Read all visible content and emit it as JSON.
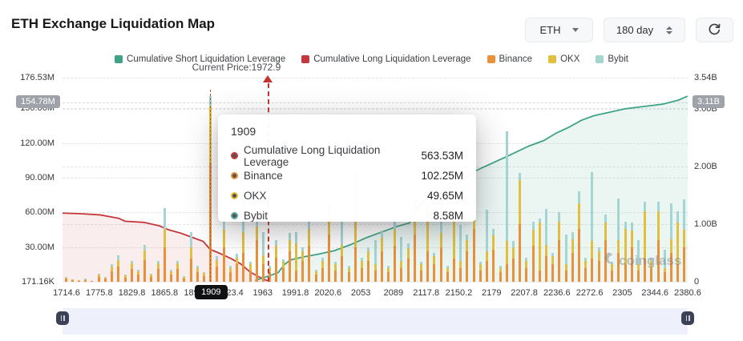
{
  "header": {
    "title": "ETH Exchange Liquidation Map",
    "coin_select": "ETH",
    "period_select": "180 day"
  },
  "legend": {
    "items": [
      {
        "label": "Cumulative Short Liquidation Leverage",
        "color": "#3fa287"
      },
      {
        "label": "Cumulative Long Liquidation Leverage",
        "color": "#c5383d"
      },
      {
        "label": "Binance",
        "color": "#e8913a"
      },
      {
        "label": "OKX",
        "color": "#e2bf3f"
      },
      {
        "label": "Bybit",
        "color": "#a5d5d3"
      }
    ]
  },
  "current_price": {
    "label": "Current Price:1972.9",
    "value": 1972.9,
    "fraction": 0.329
  },
  "tooltip": {
    "title": "1909",
    "rows": [
      {
        "name": "Cumulative Long Liquidation Leverage",
        "value": "563.53M",
        "color": "#c5383d"
      },
      {
        "name": "Binance",
        "value": "102.25M",
        "color": "#e8913a"
      },
      {
        "name": "OKX",
        "value": "49.65M",
        "color": "#e2bf3f"
      },
      {
        "name": "Bybit",
        "value": "8.58M",
        "color": "#58a9a4"
      }
    ]
  },
  "watermark": "coinglass",
  "chart_data": {
    "type": "bar",
    "subtype": "stacked bars with two cumulative area lines",
    "x_axis": {
      "type": "category",
      "tick_labels": [
        "1714.6",
        "1775.8",
        "1829.8",
        "1865.8",
        "1894.6",
        "1923.4",
        "1963",
        "1991.8",
        "2020.6",
        "2053",
        "2089",
        "2117.8",
        "2150.2",
        "2179",
        "2207.8",
        "2236.6",
        "2272.6",
        "2305",
        "2344.6",
        "2380.6"
      ],
      "highlight": {
        "label": "1909",
        "fraction": 0.236
      }
    },
    "y_left": {
      "unit": "M",
      "max_M": 176.53,
      "ticks": [
        {
          "label": "171.16K",
          "value_M": 0
        },
        {
          "label": "30.00M",
          "value_M": 30
        },
        {
          "label": "60.00M",
          "value_M": 60
        },
        {
          "label": "90.00M",
          "value_M": 90
        },
        {
          "label": "120.00M",
          "value_M": 120
        },
        {
          "label": "150.00M",
          "value_M": 150
        },
        {
          "label": "176.53M",
          "value_M": 176.53
        }
      ],
      "badge": {
        "label": "154.78M",
        "value_M": 154.78
      }
    },
    "y_right": {
      "unit": "B",
      "max_B": 3.54,
      "ticks": [
        {
          "label": "0",
          "value_B": 0
        },
        {
          "label": "1.00B",
          "value_B": 1
        },
        {
          "label": "2.00B",
          "value_B": 2
        },
        {
          "label": "3.00B",
          "value_B": 3
        },
        {
          "label": "3.54B",
          "value_B": 3.54
        }
      ],
      "badge": {
        "label": "3.11B",
        "value_B": 3.11
      }
    },
    "bars": {
      "series_order": [
        "Binance",
        "OKX",
        "Bybit"
      ],
      "colors": {
        "binance": "#e8913a",
        "okx": "#e2bf3f",
        "bybit": "#a5d5d3"
      },
      "unit": "M",
      "values": [
        [
          2.5,
          1.2,
          0.3
        ],
        [
          1.2,
          0.6,
          0.2
        ],
        [
          0.8,
          0.4,
          0.1
        ],
        [
          1.5,
          0.8,
          0.2
        ],
        [
          0.6,
          0.3,
          0.1
        ],
        [
          4,
          2,
          0.6
        ],
        [
          2.5,
          1.2,
          0.4
        ],
        [
          9,
          4,
          2
        ],
        [
          13,
          6,
          4
        ],
        [
          3.5,
          2,
          1
        ],
        [
          11,
          5,
          2
        ],
        [
          6,
          3,
          1.5
        ],
        [
          19,
          8,
          5
        ],
        [
          4,
          2,
          1
        ],
        [
          11,
          5,
          2
        ],
        [
          30,
          16,
          18
        ],
        [
          6,
          3,
          1.5
        ],
        [
          11,
          5,
          2
        ],
        [
          3,
          1.5,
          0.5
        ],
        [
          20,
          10,
          13
        ],
        [
          8,
          4,
          2
        ],
        [
          5,
          2.5,
          1
        ],
        [
          102.25,
          49.65,
          8.58
        ],
        [
          13,
          6,
          3
        ],
        [
          30,
          15,
          12
        ],
        [
          8,
          4,
          2
        ],
        [
          15,
          6,
          3
        ],
        [
          25,
          18,
          40
        ],
        [
          10,
          5,
          2
        ],
        [
          36,
          12,
          8
        ],
        [
          15,
          8,
          20
        ],
        [
          8,
          4,
          2
        ],
        [
          21,
          10,
          5
        ],
        [
          12,
          5,
          2.5
        ],
        [
          26,
          10,
          6
        ],
        [
          10,
          23,
          10
        ],
        [
          18,
          8,
          4
        ],
        [
          31,
          15,
          8
        ],
        [
          6,
          3,
          1.5
        ],
        [
          12,
          6,
          3
        ],
        [
          41,
          18,
          10
        ],
        [
          10,
          5,
          2
        ],
        [
          22,
          10,
          26
        ],
        [
          8,
          4,
          2
        ],
        [
          30,
          22,
          41
        ],
        [
          12,
          6,
          3
        ],
        [
          18,
          8,
          4
        ],
        [
          10,
          5,
          21
        ],
        [
          26,
          12,
          6
        ],
        [
          8,
          4,
          2
        ],
        [
          31,
          14,
          7
        ],
        [
          12,
          6,
          21
        ],
        [
          20,
          9,
          4.5
        ],
        [
          41,
          20,
          10
        ],
        [
          10,
          5,
          2
        ],
        [
          26,
          40,
          8
        ],
        [
          15,
          7,
          3
        ],
        [
          30,
          12,
          26
        ],
        [
          8,
          4,
          2
        ],
        [
          20,
          36,
          6
        ],
        [
          12,
          6,
          31
        ],
        [
          26,
          10,
          5
        ],
        [
          46,
          20,
          8
        ],
        [
          10,
          5,
          2
        ],
        [
          18,
          8,
          36
        ],
        [
          28,
          12,
          6
        ],
        [
          8,
          4,
          2
        ],
        [
          15,
          20,
          95
        ],
        [
          20,
          10,
          5
        ],
        [
          50,
          38,
          6
        ],
        [
          12,
          6,
          3
        ],
        [
          31,
          14,
          7
        ],
        [
          10,
          41,
          4
        ],
        [
          22,
          10,
          31
        ],
        [
          15,
          7,
          3
        ],
        [
          36,
          16,
          8
        ],
        [
          10,
          5,
          26
        ],
        [
          25,
          12,
          6
        ],
        [
          46,
          22,
          10
        ],
        [
          12,
          6,
          3
        ],
        [
          20,
          15,
          60
        ],
        [
          18,
          8,
          4
        ],
        [
          36,
          15,
          7
        ],
        [
          10,
          5,
          2
        ],
        [
          25,
          11,
          36
        ],
        [
          15,
          31,
          6
        ],
        [
          30,
          14,
          7
        ],
        [
          10,
          5,
          21
        ],
        [
          20,
          41,
          8
        ],
        [
          12,
          6,
          3
        ],
        [
          36,
          25,
          8
        ],
        [
          8,
          4,
          16
        ],
        [
          25,
          12,
          31
        ],
        [
          15,
          36,
          10
        ],
        [
          30,
          15,
          26
        ]
      ]
    },
    "lines": {
      "long": {
        "name": "Cumulative Long Liquidation Leverage",
        "color": "#c5383d",
        "fill": "rgba(197,56,61,0.09)",
        "axis": "right",
        "points": [
          [
            0,
            1.19
          ],
          [
            0.03,
            1.18
          ],
          [
            0.06,
            1.16
          ],
          [
            0.09,
            1.1
          ],
          [
            0.1,
            1.05
          ],
          [
            0.13,
            1.03
          ],
          [
            0.155,
            0.97
          ],
          [
            0.17,
            0.9
          ],
          [
            0.19,
            0.84
          ],
          [
            0.21,
            0.76
          ],
          [
            0.225,
            0.7
          ],
          [
            0.236,
            0.563
          ],
          [
            0.25,
            0.5
          ],
          [
            0.27,
            0.4
          ],
          [
            0.285,
            0.31
          ],
          [
            0.3,
            0.17
          ],
          [
            0.315,
            0.08
          ],
          [
            0.325,
            0.03
          ],
          [
            0.332,
            0.01
          ]
        ]
      },
      "short": {
        "name": "Cumulative Short Liquidation Leverage",
        "color": "#3fa287",
        "fill": "rgba(63,162,135,0.10)",
        "axis": "right",
        "points": [
          [
            0.308,
            0.02
          ],
          [
            0.318,
            0.06
          ],
          [
            0.33,
            0.1
          ],
          [
            0.345,
            0.16
          ],
          [
            0.355,
            0.3
          ],
          [
            0.365,
            0.38
          ],
          [
            0.385,
            0.43
          ],
          [
            0.41,
            0.48
          ],
          [
            0.435,
            0.54
          ],
          [
            0.46,
            0.64
          ],
          [
            0.485,
            0.76
          ],
          [
            0.51,
            0.86
          ],
          [
            0.535,
            0.96
          ],
          [
            0.555,
            1.02
          ],
          [
            0.565,
            1.25
          ],
          [
            0.58,
            1.42
          ],
          [
            0.6,
            1.52
          ],
          [
            0.62,
            1.64
          ],
          [
            0.645,
            1.8
          ],
          [
            0.66,
            1.92
          ],
          [
            0.68,
            2.02
          ],
          [
            0.7,
            2.12
          ],
          [
            0.72,
            2.22
          ],
          [
            0.745,
            2.35
          ],
          [
            0.77,
            2.45
          ],
          [
            0.79,
            2.58
          ],
          [
            0.81,
            2.68
          ],
          [
            0.83,
            2.8
          ],
          [
            0.85,
            2.88
          ],
          [
            0.875,
            2.94
          ],
          [
            0.9,
            3.0
          ],
          [
            0.93,
            3.04
          ],
          [
            0.96,
            3.08
          ],
          [
            0.985,
            3.15
          ],
          [
            1.0,
            3.22
          ]
        ]
      }
    },
    "hover": {
      "fraction": 0.236,
      "line_color": "#a5622d"
    },
    "grid": "horizontal dashed",
    "legend_position": "top center"
  }
}
